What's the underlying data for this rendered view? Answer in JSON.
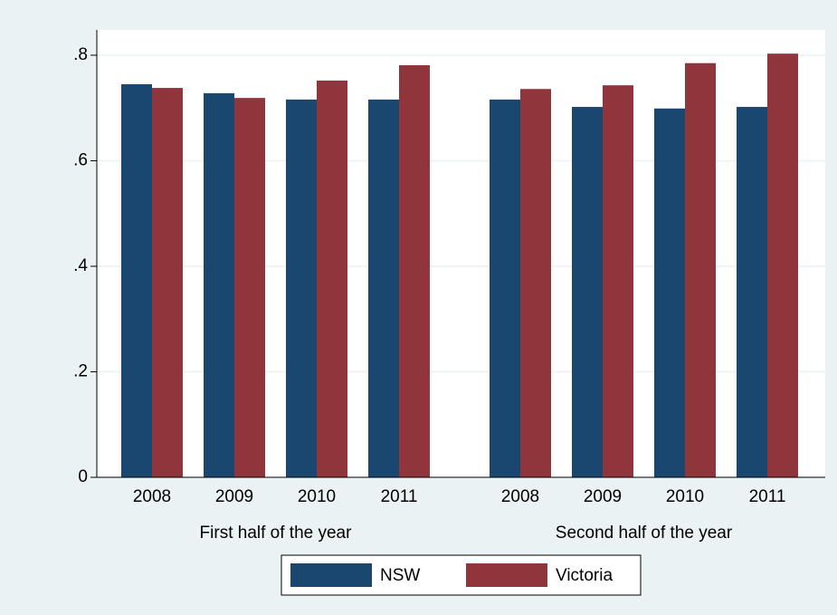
{
  "chart_data": {
    "type": "grouped-bar",
    "groups": [
      {
        "label": "First half of the year",
        "categories": [
          "2008",
          "2009",
          "2010",
          "2011"
        ]
      },
      {
        "label": "Second half of the year",
        "categories": [
          "2008",
          "2009",
          "2010",
          "2011"
        ]
      }
    ],
    "series": [
      {
        "name": "NSW",
        "color": "#1a476f",
        "values": [
          [
            0.745,
            0.728,
            0.716,
            0.716
          ],
          [
            0.716,
            0.702,
            0.699,
            0.702
          ]
        ]
      },
      {
        "name": "Victoria",
        "color": "#90353b",
        "values": [
          [
            0.738,
            0.719,
            0.752,
            0.781
          ],
          [
            0.736,
            0.743,
            0.785,
            0.803
          ]
        ]
      }
    ],
    "ylim": [
      0,
      0.848
    ],
    "yticks": [
      0,
      {
        "value": 0.2,
        "label": ".2"
      },
      {
        "value": 0.4,
        "label": ".4"
      },
      {
        "value": 0.6,
        "label": ".6"
      },
      {
        "value": 0.8,
        "label": ".8"
      }
    ],
    "grid": true
  }
}
